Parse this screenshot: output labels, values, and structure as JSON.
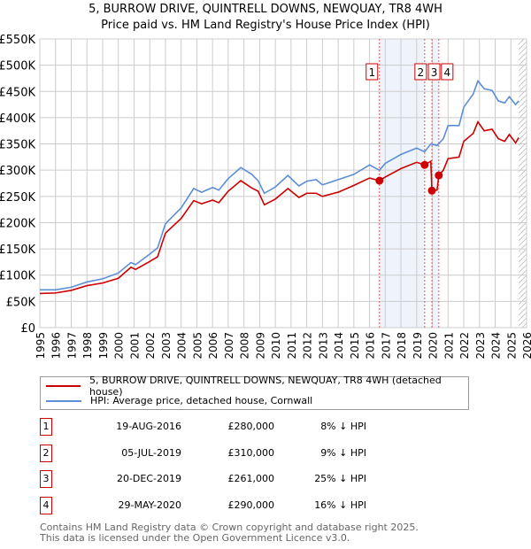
{
  "chart_data": {
    "type": "line",
    "title": "5, BURROW DRIVE, QUINTRELL DOWNS, NEWQUAY, TR8 4WH",
    "subtitle": "Price paid vs. HM Land Registry's House Price Index (HPI)",
    "xlim": [
      1995,
      2026
    ],
    "ylim": [
      0,
      550000
    ],
    "yticks": [
      {
        "v": 0,
        "l": "£0"
      },
      {
        "v": 50000,
        "l": "£50K"
      },
      {
        "v": 100000,
        "l": "£100K"
      },
      {
        "v": 150000,
        "l": "£150K"
      },
      {
        "v": 200000,
        "l": "£200K"
      },
      {
        "v": 250000,
        "l": "£250K"
      },
      {
        "v": 300000,
        "l": "£300K"
      },
      {
        "v": 350000,
        "l": "£350K"
      },
      {
        "v": 400000,
        "l": "£400K"
      },
      {
        "v": 450000,
        "l": "£450K"
      },
      {
        "v": 500000,
        "l": "£500K"
      },
      {
        "v": 550000,
        "l": "£550K"
      }
    ],
    "xticks": [
      "1995",
      "1996",
      "1997",
      "1998",
      "1999",
      "2000",
      "2001",
      "2002",
      "2003",
      "2004",
      "2005",
      "2006",
      "2007",
      "2008",
      "2009",
      "2010",
      "2011",
      "2012",
      "2013",
      "2014",
      "2015",
      "2016",
      "2017",
      "2018",
      "2019",
      "2020",
      "2021",
      "2022",
      "2023",
      "2024",
      "2025",
      "2026"
    ],
    "series": [
      {
        "name": "5, BURROW DRIVE, QUINTRELL DOWNS, NEWQUAY, TR8 4WH (detached house)",
        "color": "#cc0000",
        "x": [
          1995,
          1996,
          1997,
          1998,
          1999,
          2000,
          2000.8,
          2001.1,
          2002,
          2002.5,
          2003,
          2004,
          2004.8,
          2005.3,
          2006,
          2006.4,
          2007,
          2007.8,
          2008.5,
          2008.9,
          2009.3,
          2010,
          2010.8,
          2011.5,
          2012,
          2012.6,
          2013,
          2014,
          2015,
          2016,
          2016.63,
          2017,
          2018,
          2019,
          2019.51,
          2019.9,
          2019.97,
          2020.3,
          2020.41,
          2020.7,
          2021,
          2021.7,
          2022,
          2022.6,
          2022.9,
          2023.3,
          2023.8,
          2024.2,
          2024.6,
          2024.9,
          2025.3,
          2025.5
        ],
        "y": [
          65000,
          66000,
          71000,
          80000,
          85000,
          94000,
          115000,
          111000,
          126000,
          135000,
          180000,
          208000,
          242000,
          236000,
          243000,
          238000,
          260000,
          280000,
          266000,
          260000,
          234000,
          245000,
          265000,
          248000,
          256000,
          256000,
          250000,
          258000,
          271000,
          285000,
          280000,
          287000,
          303000,
          315000,
          310000,
          317000,
          261000,
          262000,
          290000,
          300000,
          322000,
          325000,
          355000,
          370000,
          392000,
          375000,
          378000,
          360000,
          355000,
          368000,
          352000,
          362000
        ]
      },
      {
        "name": "HPI: Average price, detached house, Cornwall",
        "color": "#5b8ed6",
        "x": [
          1995,
          1996,
          1997,
          1998,
          1999,
          2000,
          2000.8,
          2001.1,
          2002,
          2002.5,
          2003,
          2004,
          2004.8,
          2005.3,
          2006,
          2006.4,
          2007,
          2007.8,
          2008.5,
          2008.9,
          2009.3,
          2010,
          2010.8,
          2011.5,
          2012,
          2012.6,
          2013,
          2014,
          2015,
          2016,
          2016.63,
          2017,
          2018,
          2019,
          2019.51,
          2019.9,
          2020.3,
          2020.7,
          2021,
          2021.7,
          2022,
          2022.6,
          2022.9,
          2023.3,
          2023.8,
          2024.2,
          2024.6,
          2024.9,
          2025.3,
          2025.5
        ],
        "y": [
          72000,
          72000,
          77000,
          87000,
          93000,
          104000,
          124000,
          120000,
          140000,
          152000,
          198000,
          228000,
          265000,
          258000,
          267000,
          262000,
          284000,
          305000,
          292000,
          280000,
          256000,
          268000,
          290000,
          270000,
          279000,
          282000,
          272000,
          282000,
          292000,
          310000,
          300000,
          313000,
          330000,
          342000,
          335000,
          350000,
          347000,
          360000,
          385000,
          385000,
          420000,
          445000,
          470000,
          455000,
          452000,
          432000,
          428000,
          440000,
          425000,
          432000
        ]
      }
    ],
    "sales": [
      {
        "n": "1",
        "x": 2016.63,
        "y": 280000,
        "date": "19-AUG-2016",
        "price": "£280,000",
        "hpi": "8% ↓ HPI"
      },
      {
        "n": "2",
        "x": 2019.51,
        "y": 310000,
        "date": "05-JUL-2019",
        "price": "£310,000",
        "hpi": "9% ↓ HPI"
      },
      {
        "n": "3",
        "x": 2019.97,
        "y": 261000,
        "date": "20-DEC-2019",
        "price": "£261,000",
        "hpi": "25% ↓ HPI"
      },
      {
        "n": "4",
        "x": 2020.41,
        "y": 290000,
        "date": "29-MAY-2020",
        "price": "£290,000",
        "hpi": "16% ↓ HPI"
      }
    ],
    "shaded_periods": [
      [
        2016.63,
        2019.51
      ],
      [
        2019.97,
        2020.41
      ]
    ],
    "hatch_from": 2025.5,
    "grid": true,
    "legend": "bottom"
  },
  "footer": [
    "Contains HM Land Registry data © Crown copyright and database right 2025.",
    "This data is licensed under the Open Government Licence v3.0."
  ]
}
